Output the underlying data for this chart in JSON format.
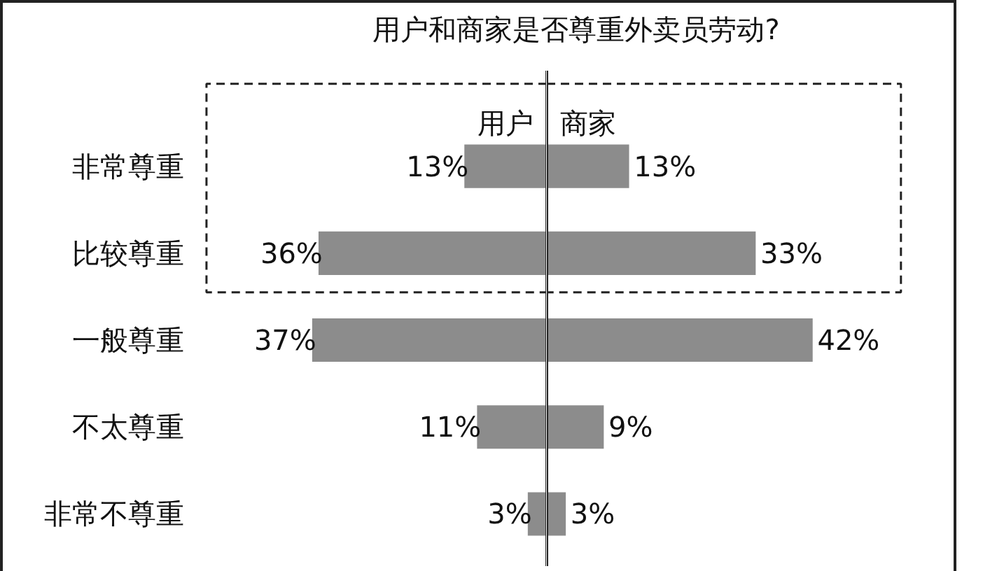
{
  "chart_data": [
    {
      "type": "bar",
      "orientation": "horizontal",
      "title": "用户和商家是否尊重外卖员劳动?",
      "categories": [
        "非常尊重",
        "比较尊重",
        "一般尊重",
        "不太尊重",
        "非常不尊重"
      ],
      "tick_labels": "y",
      "series": [
        {
          "name": "用户",
          "color": "#8c8c8c",
          "values": [
            13,
            36,
            37,
            11,
            3
          ],
          "value_labels": [
            "13%",
            "36%",
            "37%",
            "11%",
            "3%"
          ]
        }
      ]
    },
    {
      "type": "bar",
      "orientation": "horizontal",
      "categories": [
        null,
        null,
        null,
        null,
        null
      ],
      "tick_labels": false,
      "series": [
        {
          "name": "商家",
          "color": "#8c8c8c",
          "values": [
            13,
            33,
            42,
            9,
            3
          ],
          "value_labels": [
            "13%",
            "33%",
            "42%",
            "9%",
            "3%"
          ]
        }
      ]
    }
  ]
}
